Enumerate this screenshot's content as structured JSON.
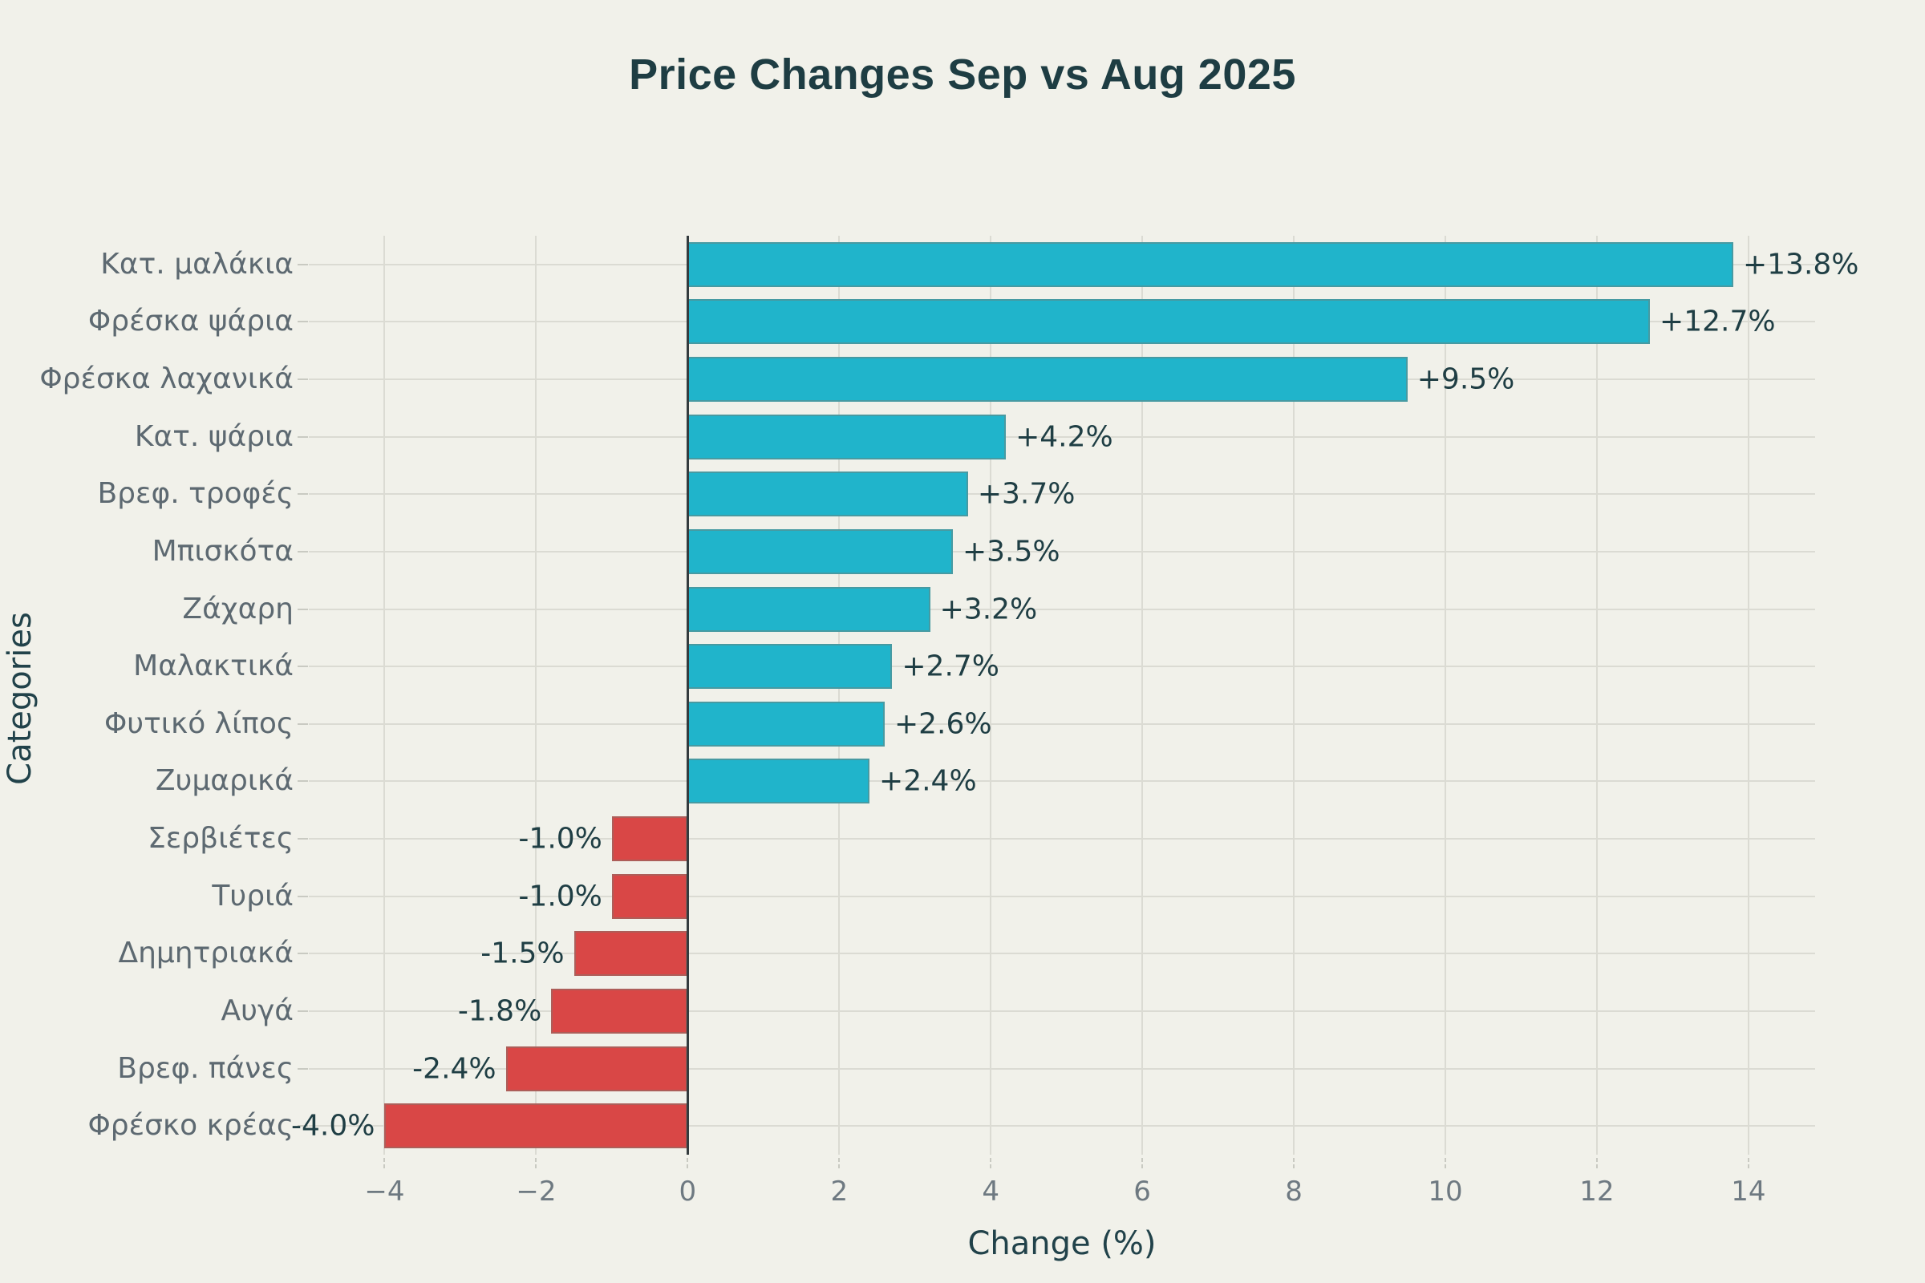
{
  "page": {
    "background_color": "#F1F1EA"
  },
  "chart_data": {
    "type": "bar",
    "orientation": "horizontal",
    "title": "Price Changes Sep vs Aug 2025",
    "xlabel": "Change (%)",
    "ylabel": "Categories",
    "categories": [
      "Κατ. μαλάκια",
      "Φρέσκα ψάρια",
      "Φρέσκα λαχανικά",
      "Κατ. ψάρια",
      "Βρεφ. τροφές",
      "Μπισκότα",
      "Ζάχαρη",
      "Μαλακτικά",
      "Φυτικό λίπος",
      "Ζυμαρικά",
      "Σερβιέτες",
      "Τυριά",
      "Δημητριακά",
      "Αυγά",
      "Βρεφ. πάνες",
      "Φρέσκο κρέας"
    ],
    "values": [
      13.8,
      12.7,
      9.5,
      4.2,
      3.7,
      3.5,
      3.2,
      2.7,
      2.6,
      2.4,
      -1.0,
      -1.0,
      -1.5,
      -1.8,
      -2.4,
      -4.0
    ],
    "bar_labels": [
      "+13.8%",
      "+12.7%",
      "+9.5%",
      "+4.2%",
      "+3.7%",
      "+3.5%",
      "+3.2%",
      "+2.7%",
      "+2.6%",
      "+2.4%",
      "-1.0%",
      "-1.0%",
      "-1.5%",
      "-1.8%",
      "-2.4%",
      "-4.0%"
    ],
    "x_ticks": [
      -4,
      -2,
      0,
      2,
      4,
      6,
      8,
      10,
      12,
      14
    ],
    "x_tick_labels": [
      "−4",
      "−2",
      "0",
      "2",
      "4",
      "6",
      "8",
      "10",
      "12",
      "14"
    ],
    "xlim": [
      -5.0,
      14.88
    ],
    "grid": true,
    "legend": null,
    "colors": {
      "positive": "#20B4CB",
      "negative": "#D94746",
      "gridline": "#DBDBD3",
      "zero_line": "#343B3E",
      "title_text": "#1E3D43",
      "axis_title_text": "#21424A",
      "category_text": "#5D6971",
      "tick_text": "#6E7981",
      "value_text": "#1F3E44",
      "background": "#F1F1EA"
    }
  }
}
